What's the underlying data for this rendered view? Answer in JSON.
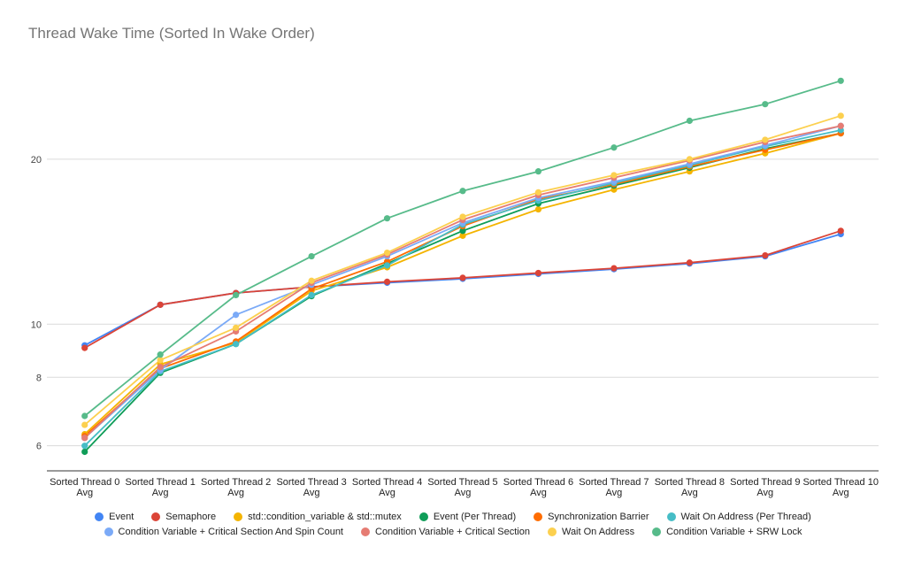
{
  "chart_data": {
    "type": "line",
    "title": "Thread Wake Time (Sorted In Wake Order)",
    "xlabel": "",
    "ylabel": "",
    "y_scale": "log",
    "ylim": [
      5.4,
      31
    ],
    "y_ticks": [
      6,
      8,
      10,
      20
    ],
    "grid": true,
    "legend_position": "bottom",
    "categories": [
      [
        "Sorted Thread 0",
        "Avg"
      ],
      [
        "Sorted Thread 1",
        "Avg"
      ],
      [
        "Sorted Thread 2",
        "Avg"
      ],
      [
        "Sorted Thread 3",
        "Avg"
      ],
      [
        "Sorted Thread 4",
        "Avg"
      ],
      [
        "Sorted Thread 5",
        "Avg"
      ],
      [
        "Sorted Thread 6",
        "Avg"
      ],
      [
        "Sorted Thread 7",
        "Avg"
      ],
      [
        "Sorted Thread 8",
        "Avg"
      ],
      [
        "Sorted Thread 9",
        "Avg"
      ],
      [
        "Sorted Thread 10",
        "Avg"
      ]
    ],
    "series": [
      {
        "name": "Event",
        "color": "#4285f4",
        "values": [
          9.15,
          10.85,
          11.4,
          11.7,
          11.9,
          12.1,
          12.35,
          12.6,
          12.9,
          13.3,
          14.6
        ]
      },
      {
        "name": "Semaphore",
        "color": "#db4437",
        "values": [
          9.05,
          10.85,
          11.4,
          11.7,
          11.95,
          12.15,
          12.4,
          12.65,
          12.95,
          13.35,
          14.8
        ]
      },
      {
        "name": "std::condition_variable & std::mutex",
        "color": "#f4b400",
        "values": [
          6.3,
          8.45,
          9.25,
          11.5,
          12.7,
          14.5,
          16.2,
          17.6,
          19.0,
          20.5,
          22.3
        ]
      },
      {
        "name": "Event (Per Thread)",
        "color": "#0f9d58",
        "values": [
          5.85,
          8.15,
          9.2,
          11.25,
          12.9,
          14.8,
          16.6,
          17.9,
          19.3,
          20.9,
          22.3
        ]
      },
      {
        "name": "Synchronization Barrier",
        "color": "#ff6d01",
        "values": [
          6.25,
          8.3,
          9.3,
          11.6,
          13.0,
          15.1,
          16.9,
          18.0,
          19.4,
          20.8,
          22.3
        ]
      },
      {
        "name": "Wait On Address (Per Thread)",
        "color": "#46bdc6",
        "values": [
          6.0,
          8.2,
          9.2,
          11.3,
          12.8,
          15.2,
          16.8,
          18.1,
          19.5,
          21.1,
          22.6
        ]
      },
      {
        "name": "Condition Variable + Critical Section And Spin Count",
        "color": "#7baaf7",
        "values": [
          6.2,
          8.25,
          10.4,
          11.8,
          13.3,
          15.3,
          17.0,
          18.2,
          19.6,
          21.2,
          23.0
        ]
      },
      {
        "name": "Condition Variable + Critical Section",
        "color": "#e67c73",
        "values": [
          6.2,
          8.35,
          9.7,
          11.9,
          13.4,
          15.5,
          17.2,
          18.5,
          19.9,
          21.5,
          23.0
        ]
      },
      {
        "name": "Wait On Address",
        "color": "#fcd04f",
        "values": [
          6.55,
          8.6,
          9.85,
          12.0,
          13.5,
          15.7,
          17.4,
          18.7,
          20.0,
          21.7,
          24.0
        ]
      },
      {
        "name": "Condition Variable + SRW Lock",
        "color": "#57bb8a",
        "values": [
          6.8,
          8.8,
          11.3,
          13.3,
          15.6,
          17.5,
          19.0,
          21.0,
          23.5,
          25.2,
          27.8
        ]
      }
    ]
  }
}
